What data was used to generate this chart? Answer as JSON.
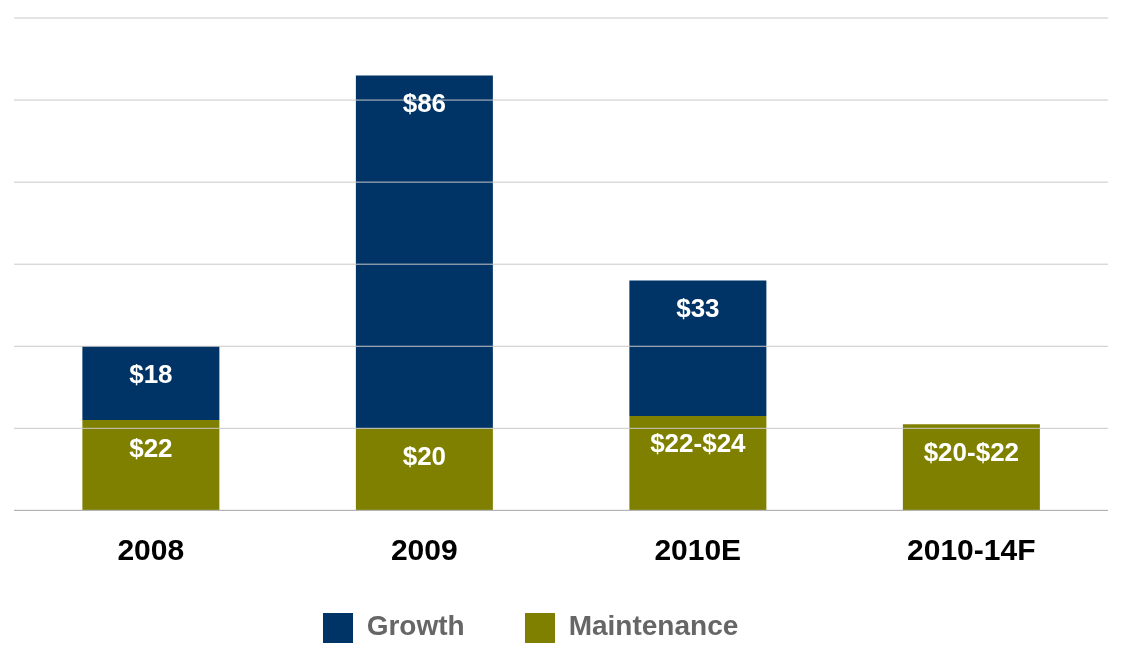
{
  "chart_data": {
    "type": "bar",
    "stacked": true,
    "categories": [
      "2008",
      "2009",
      "2010E",
      "2010-14F"
    ],
    "series": [
      {
        "name": "Maintenance",
        "color": "#808000",
        "values": [
          22,
          20,
          23,
          21
        ],
        "value_labels": [
          "$22",
          "$20",
          "$22-$24",
          "$20-$22"
        ]
      },
      {
        "name": "Growth",
        "color": "#003366",
        "values": [
          18,
          86,
          33,
          null
        ],
        "value_labels": [
          "$18",
          "$86",
          "$33",
          null
        ]
      }
    ],
    "ylim": [
      0,
      120
    ],
    "yticks": [
      {
        "value": 0,
        "label": null
      },
      {
        "value": 20,
        "label": null
      },
      {
        "value": 40,
        "label": null
      },
      {
        "value": 60,
        "label": null
      },
      {
        "value": 80,
        "label": null
      },
      {
        "value": 100,
        "label": null
      },
      {
        "value": 120,
        "label": null
      }
    ],
    "grid": "y",
    "legend": "bottom",
    "tick_labels": "x"
  }
}
